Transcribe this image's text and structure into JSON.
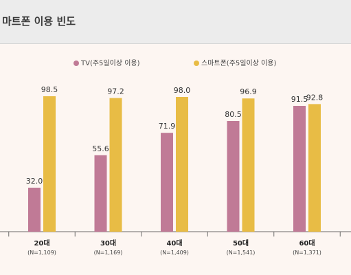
{
  "header": {
    "title": "마트폰 이용 빈도"
  },
  "legend": [
    {
      "label": "TV(주5일이상 이용)",
      "color": "#c07a96"
    },
    {
      "label": "스마트폰(주5일이상 이용)",
      "color": "#e8bc45"
    }
  ],
  "chart_data": {
    "type": "bar",
    "title": "마트폰 이용 빈도",
    "categories": [
      "20대",
      "30대",
      "40대",
      "50대",
      "60대"
    ],
    "sample_sizes": [
      "(N=1,109)",
      "(N=1,169)",
      "(N=1,409)",
      "(N=1,541)",
      "(N=1,371)"
    ],
    "series": [
      {
        "name": "TV(주5일이상 이용)",
        "values": [
          32.0,
          55.6,
          71.9,
          80.5,
          91.5
        ],
        "color": "#c07a96"
      },
      {
        "name": "스마트폰(주5일이상 이용)",
        "values": [
          98.5,
          97.2,
          98.0,
          96.9,
          92.8
        ],
        "color": "#e8bc45"
      }
    ],
    "ylim": [
      0,
      100
    ],
    "grid": false,
    "legend_position": "top"
  }
}
